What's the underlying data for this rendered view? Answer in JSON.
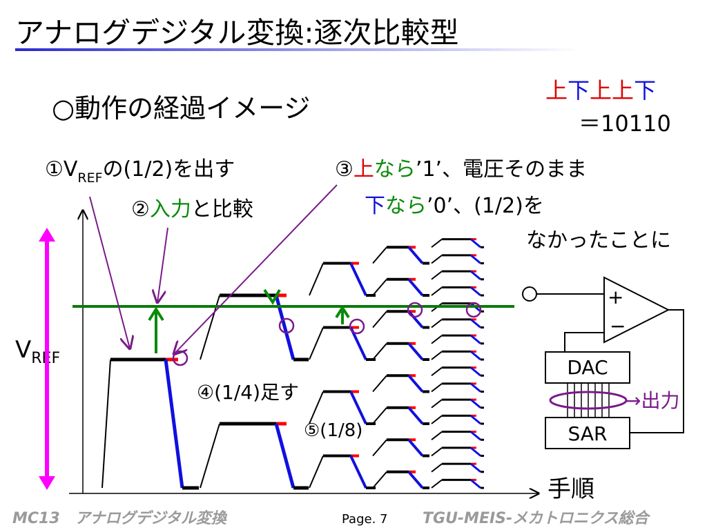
{
  "header": {
    "title": "アナログデジタル変換:逐次比較型"
  },
  "subtitle": "○動作の経過イメージ",
  "result": {
    "bits": [
      "上",
      "下",
      "上",
      "上",
      "下"
    ],
    "code": "＝10110"
  },
  "steps": {
    "step1": {
      "prefix": "①V",
      "sub": "REF",
      "suffix": "の(1/2)を出す"
    },
    "step2": {
      "number": "②",
      "highlight": "入力",
      "rest": "と比較"
    },
    "step3": {
      "number": "③",
      "up": "上",
      "up_cond": "なら",
      "up_rest": "’1’、電圧そのまま",
      "down": "下",
      "down_cond": "なら",
      "down_rest": "’0’、(1/2)を",
      "down_rest2": "なかったことに"
    },
    "step4": "④(1/4)足す",
    "step5": "⑤(1/8)"
  },
  "axis": {
    "y_label": "V",
    "y_label_sub": "REF",
    "x_label": "手順"
  },
  "circuit": {
    "plus": "+",
    "minus": "−",
    "dac": "DAC",
    "sar": "SAR",
    "output": "→出力"
  },
  "footer": {
    "left": "MC13　アナログデジタル変換",
    "page": "Page. 7",
    "right": "TGU-MEIS-メカトロニクス総合"
  }
}
